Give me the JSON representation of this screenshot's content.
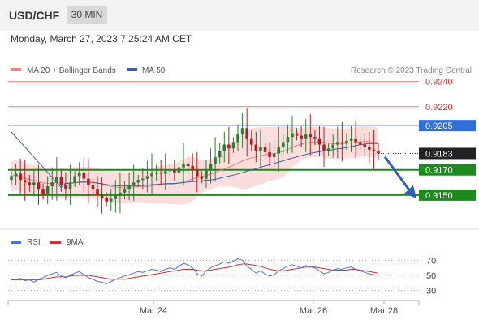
{
  "header": {
    "symbol": "USD/CHF",
    "timeframe": "30 MIN"
  },
  "datetime": "Monday, March 27, 2023 7:25:24 AM CET",
  "credit": "Research © 2023 Trading Central",
  "colors": {
    "bollinger": "#f08080",
    "ma50": "#3a5fa8",
    "up_candle": "#2e7d32",
    "down_candle": "#b71c1c",
    "resistance": "#f08080",
    "pivot": "#2f6fdc",
    "support": "#1d8a1d",
    "arrow": "#2a64b0",
    "rsi": "#4a74d8",
    "rsi_ma": "#d03030"
  },
  "chart_data": [
    {
      "type": "candlestick",
      "legend": [
        {
          "label": "MA 20 + Bollinger Bands",
          "color": "#f08080"
        },
        {
          "label": "MA 50",
          "color": "#3a5fa8"
        }
      ],
      "ylim": [
        0.9123,
        0.925
      ],
      "current_price": 0.9183,
      "levels": [
        {
          "value": 0.924,
          "label": "0.9240",
          "type": "resistance"
        },
        {
          "value": 0.922,
          "label": "0.9220",
          "type": "resistance"
        },
        {
          "value": 0.9205,
          "label": "0.9205",
          "type": "pivot"
        },
        {
          "value": 0.917,
          "label": "0.9170",
          "type": "support"
        },
        {
          "value": 0.915,
          "label": "0.9150",
          "type": "support"
        }
      ],
      "forecast_arrow": {
        "from": 0.9183,
        "to": 0.915
      },
      "close": [
        0.9165,
        0.9167,
        0.9162,
        0.916,
        0.9158,
        0.916,
        0.9155,
        0.915,
        0.9157,
        0.916,
        0.9164,
        0.9158,
        0.9155,
        0.916,
        0.9165,
        0.9168,
        0.9163,
        0.9158,
        0.9155,
        0.915,
        0.9148,
        0.9145,
        0.9147,
        0.915,
        0.9152,
        0.9155,
        0.9158,
        0.916,
        0.9162,
        0.9163,
        0.9165,
        0.9167,
        0.9168,
        0.9167,
        0.9169,
        0.917,
        0.9168,
        0.9172,
        0.9175,
        0.9173,
        0.917,
        0.9165,
        0.9163,
        0.917,
        0.9175,
        0.918,
        0.9185,
        0.919,
        0.9187,
        0.9192,
        0.9198,
        0.9203,
        0.9195,
        0.919,
        0.9185,
        0.9188,
        0.9184,
        0.918,
        0.9183,
        0.9188,
        0.9192,
        0.9196,
        0.9199,
        0.9197,
        0.9195,
        0.9198,
        0.9196,
        0.9195,
        0.919,
        0.9185,
        0.9187,
        0.919,
        0.9192,
        0.9191,
        0.9193,
        0.9195,
        0.9192,
        0.919,
        0.9188,
        0.9186,
        0.9185,
        0.9183
      ]
    },
    {
      "type": "line",
      "title": "RSI",
      "series": [
        {
          "name": "RSI",
          "color": "#4a74d8"
        },
        {
          "name": "9MA",
          "color": "#d03030"
        }
      ],
      "ylim": [
        20,
        80
      ],
      "yticks": [
        70,
        50,
        30
      ],
      "xticks": [
        "Mar 24",
        "Mar 26",
        "Mar 28"
      ],
      "rsi": [
        45,
        44,
        46,
        43,
        44,
        41,
        45,
        47,
        50,
        52,
        54,
        49,
        47,
        50,
        53,
        55,
        51,
        47,
        45,
        42,
        41,
        39,
        42,
        45,
        47,
        49,
        51,
        53,
        55,
        54,
        56,
        58,
        57,
        55,
        58,
        60,
        58,
        62,
        66,
        64,
        60,
        52,
        49,
        56,
        60,
        63,
        65,
        68,
        66,
        69,
        72,
        70,
        62,
        58,
        53,
        56,
        52,
        49,
        51,
        56,
        59,
        62,
        64,
        62,
        60,
        63,
        61,
        60,
        56,
        52,
        54,
        57,
        59,
        58,
        60,
        61,
        58,
        56,
        54,
        52,
        51,
        50
      ],
      "rsi_ma": [
        44,
        44,
        44,
        44,
        44,
        44,
        44,
        45,
        46,
        47,
        48,
        48,
        48,
        49,
        50,
        50,
        50,
        50,
        49,
        48,
        47,
        46,
        45,
        45,
        45,
        45,
        46,
        47,
        48,
        49,
        50,
        51,
        52,
        53,
        54,
        55,
        56,
        57,
        58,
        58,
        58,
        57,
        56,
        56,
        57,
        58,
        59,
        60,
        61,
        62,
        64,
        65,
        65,
        64,
        63,
        62,
        60,
        58,
        57,
        56,
        56,
        57,
        58,
        59,
        60,
        61,
        61,
        61,
        60,
        59,
        58,
        57,
        57,
        57,
        57,
        58,
        58,
        57,
        56,
        55,
        54,
        53
      ]
    }
  ]
}
